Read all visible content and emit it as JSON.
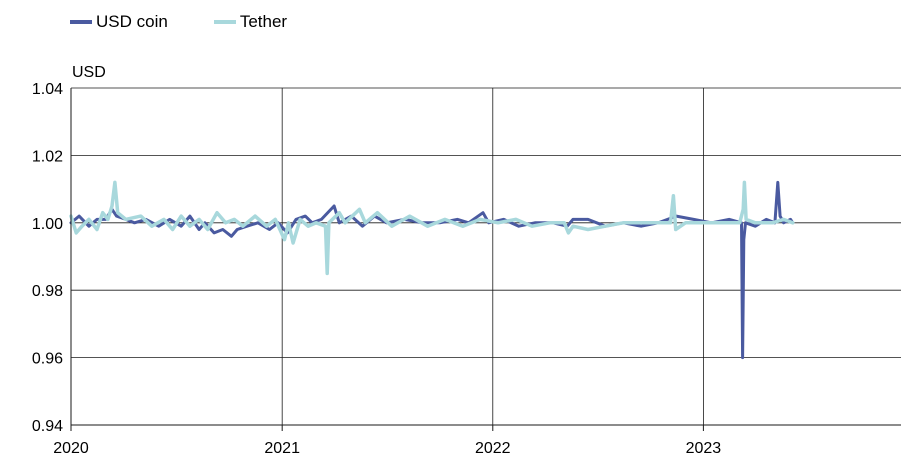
{
  "chart_data": {
    "type": "line",
    "title": "",
    "ylabel": "USD",
    "xlabel": "",
    "x_ticks": [
      "2020",
      "2021",
      "2022",
      "2023"
    ],
    "y_ticks": [
      "0.94",
      "0.96",
      "0.98",
      "1.00",
      "1.02",
      "1.04"
    ],
    "xlim": [
      "2020-01-01",
      "2023-12-31"
    ],
    "ylim": [
      0.94,
      1.04
    ],
    "grid": true,
    "legend_position": "top-left",
    "series": [
      {
        "name": "USD coin",
        "color": "#4a5aa0",
        "points": [
          [
            "2020-01-01",
            1.0
          ],
          [
            "2020-01-15",
            1.002
          ],
          [
            "2020-02-01",
            0.999
          ],
          [
            "2020-02-15",
            1.001
          ],
          [
            "2020-03-01",
            1.001
          ],
          [
            "2020-03-12",
            1.004
          ],
          [
            "2020-03-20",
            1.002
          ],
          [
            "2020-04-05",
            1.001
          ],
          [
            "2020-04-20",
            1.0
          ],
          [
            "2020-05-10",
            1.001
          ],
          [
            "2020-06-01",
            0.999
          ],
          [
            "2020-06-20",
            1.001
          ],
          [
            "2020-07-10",
            0.999
          ],
          [
            "2020-07-25",
            1.002
          ],
          [
            "2020-08-10",
            0.998
          ],
          [
            "2020-08-20",
            1.0
          ],
          [
            "2020-09-05",
            0.997
          ],
          [
            "2020-09-20",
            0.998
          ],
          [
            "2020-10-05",
            0.996
          ],
          [
            "2020-10-15",
            0.998
          ],
          [
            "2020-11-01",
            0.999
          ],
          [
            "2020-11-20",
            1.0
          ],
          [
            "2020-12-10",
            0.998
          ],
          [
            "2020-12-25",
            1.0
          ],
          [
            "2021-01-10",
            0.997
          ],
          [
            "2021-01-25",
            1.001
          ],
          [
            "2021-02-10",
            1.002
          ],
          [
            "2021-02-22",
            1.0
          ],
          [
            "2021-03-10",
            1.001
          ],
          [
            "2021-04-01",
            1.005
          ],
          [
            "2021-04-10",
            1.0
          ],
          [
            "2021-05-01",
            1.002
          ],
          [
            "2021-05-20",
            0.999
          ],
          [
            "2021-06-10",
            1.002
          ],
          [
            "2021-07-01",
            1.0
          ],
          [
            "2021-08-01",
            1.001
          ],
          [
            "2021-09-01",
            1.0
          ],
          [
            "2021-10-01",
            1.0
          ],
          [
            "2021-11-01",
            1.001
          ],
          [
            "2021-11-20",
            1.0
          ],
          [
            "2021-12-15",
            1.003
          ],
          [
            "2021-12-25",
            1.0
          ],
          [
            "2022-01-20",
            1.001
          ],
          [
            "2022-02-15",
            0.999
          ],
          [
            "2022-03-15",
            1.0
          ],
          [
            "2022-04-15",
            1.0
          ],
          [
            "2022-05-10",
            0.999
          ],
          [
            "2022-05-20",
            1.001
          ],
          [
            "2022-06-15",
            1.001
          ],
          [
            "2022-07-15",
            0.999
          ],
          [
            "2022-08-15",
            1.0
          ],
          [
            "2022-09-15",
            0.999
          ],
          [
            "2022-10-15",
            1.0
          ],
          [
            "2022-11-15",
            1.002
          ],
          [
            "2022-12-15",
            1.001
          ],
          [
            "2023-01-15",
            1.0
          ],
          [
            "2023-02-15",
            1.001
          ],
          [
            "2023-03-08",
            1.0
          ],
          [
            "2023-03-10",
            0.96
          ],
          [
            "2023-03-12",
            0.995
          ],
          [
            "2023-03-15",
            1.0
          ],
          [
            "2023-04-01",
            0.999
          ],
          [
            "2023-04-20",
            1.001
          ],
          [
            "2023-05-05",
            1.0
          ],
          [
            "2023-05-10",
            1.012
          ],
          [
            "2023-05-14",
            1.002
          ],
          [
            "2023-05-20",
            1.0
          ],
          [
            "2023-06-01",
            1.001
          ],
          [
            "2023-06-05",
            1.0
          ]
        ]
      },
      {
        "name": "Tether",
        "color": "#a8d8dc",
        "points": [
          [
            "2020-01-01",
            1.002
          ],
          [
            "2020-01-10",
            0.997
          ],
          [
            "2020-01-20",
            0.999
          ],
          [
            "2020-02-01",
            1.001
          ],
          [
            "2020-02-15",
            0.998
          ],
          [
            "2020-02-25",
            1.003
          ],
          [
            "2020-03-05",
            1.001
          ],
          [
            "2020-03-12",
            1.005
          ],
          [
            "2020-03-17",
            1.012
          ],
          [
            "2020-03-22",
            1.003
          ],
          [
            "2020-04-05",
            1.001
          ],
          [
            "2020-05-01",
            1.002
          ],
          [
            "2020-05-20",
            0.999
          ],
          [
            "2020-06-10",
            1.001
          ],
          [
            "2020-06-25",
            0.998
          ],
          [
            "2020-07-10",
            1.002
          ],
          [
            "2020-07-25",
            0.999
          ],
          [
            "2020-08-10",
            1.001
          ],
          [
            "2020-08-25",
            0.998
          ],
          [
            "2020-09-10",
            1.003
          ],
          [
            "2020-09-25",
            1.0
          ],
          [
            "2020-10-10",
            1.001
          ],
          [
            "2020-10-25",
            0.999
          ],
          [
            "2020-11-15",
            1.002
          ],
          [
            "2020-12-05",
            0.999
          ],
          [
            "2020-12-20",
            1.001
          ],
          [
            "2021-01-05",
            0.995
          ],
          [
            "2021-01-12",
            1.0
          ],
          [
            "2021-01-20",
            0.994
          ],
          [
            "2021-02-01",
            1.001
          ],
          [
            "2021-02-15",
            0.999
          ],
          [
            "2021-03-01",
            1.0
          ],
          [
            "2021-03-17",
            0.999
          ],
          [
            "2021-03-20",
            0.985
          ],
          [
            "2021-03-23",
            1.0
          ],
          [
            "2021-04-10",
            1.003
          ],
          [
            "2021-04-20",
            1.0
          ],
          [
            "2021-05-15",
            1.004
          ],
          [
            "2021-05-25",
            1.0
          ],
          [
            "2021-06-15",
            1.003
          ],
          [
            "2021-07-10",
            0.999
          ],
          [
            "2021-08-10",
            1.002
          ],
          [
            "2021-09-10",
            0.999
          ],
          [
            "2021-10-10",
            1.001
          ],
          [
            "2021-11-10",
            0.999
          ],
          [
            "2021-12-10",
            1.001
          ],
          [
            "2022-01-10",
            1.0
          ],
          [
            "2022-02-10",
            1.001
          ],
          [
            "2022-03-10",
            0.999
          ],
          [
            "2022-04-10",
            1.0
          ],
          [
            "2022-05-05",
            1.0
          ],
          [
            "2022-05-12",
            0.997
          ],
          [
            "2022-05-20",
            0.999
          ],
          [
            "2022-06-15",
            0.998
          ],
          [
            "2022-07-15",
            0.999
          ],
          [
            "2022-08-15",
            1.0
          ],
          [
            "2022-09-15",
            1.0
          ],
          [
            "2022-10-15",
            1.0
          ],
          [
            "2022-11-05",
            1.0
          ],
          [
            "2022-11-10",
            1.008
          ],
          [
            "2022-11-14",
            0.998
          ],
          [
            "2022-12-01",
            1.0
          ],
          [
            "2023-01-15",
            1.0
          ],
          [
            "2023-02-15",
            1.0
          ],
          [
            "2023-03-05",
            1.0
          ],
          [
            "2023-03-11",
            1.004
          ],
          [
            "2023-03-13",
            1.012
          ],
          [
            "2023-03-16",
            1.001
          ],
          [
            "2023-04-01",
            1.0
          ],
          [
            "2023-05-01",
            1.0
          ],
          [
            "2023-05-20",
            1.001
          ],
          [
            "2023-06-05",
            1.0
          ]
        ]
      }
    ]
  }
}
